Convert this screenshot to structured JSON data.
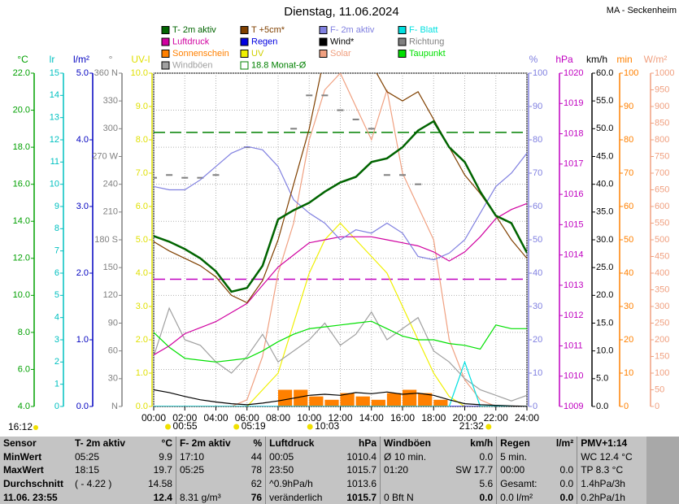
{
  "chart_data": {
    "type": "line",
    "title": "Dienstag, 11.06.2024",
    "station": "MA - Seckenheim",
    "x": [
      0,
      1,
      2,
      3,
      4,
      5,
      6,
      7,
      8,
      9,
      10,
      11,
      12,
      13,
      14,
      15,
      16,
      17,
      18,
      19,
      20,
      21,
      22,
      23,
      24
    ],
    "xlim": [
      0,
      24
    ],
    "xticks": [
      {
        "value": 0,
        "label": "00:00"
      },
      {
        "value": 2,
        "label": "02:00"
      },
      {
        "value": 4,
        "label": "04:00"
      },
      {
        "value": 6,
        "label": "06:00"
      },
      {
        "value": 8,
        "label": "08:00"
      },
      {
        "value": 10,
        "label": "10:00"
      },
      {
        "value": 12,
        "label": "12:00"
      },
      {
        "value": 14,
        "label": "14:00"
      },
      {
        "value": 16,
        "label": "16:00"
      },
      {
        "value": 18,
        "label": "18:00"
      },
      {
        "value": 20,
        "label": "20:00"
      },
      {
        "value": 22,
        "label": "22:00"
      },
      {
        "value": 24,
        "label": "24:00"
      }
    ],
    "grid": true,
    "axes": [
      {
        "label": "°C",
        "color": "#00a000",
        "side": "left",
        "lim": [
          4,
          22
        ],
        "ticks": [
          {
            "value": 4,
            "label": "4.0"
          },
          {
            "value": 6,
            "label": "6.0"
          },
          {
            "value": 8,
            "label": "8.0"
          },
          {
            "value": 10,
            "label": "10.0"
          },
          {
            "value": 12,
            "label": "12.0"
          },
          {
            "value": 14,
            "label": "14.0"
          },
          {
            "value": 16,
            "label": "16.0"
          },
          {
            "value": 18,
            "label": "18.0"
          },
          {
            "value": 20,
            "label": "20.0"
          },
          {
            "value": 22,
            "label": "22.0"
          }
        ]
      },
      {
        "label": "lr",
        "color": "#00c0c0",
        "side": "left",
        "lim": [
          0,
          15
        ],
        "ticks": [
          0,
          1,
          2,
          3,
          4,
          5,
          6,
          7,
          8,
          9,
          10,
          11,
          12,
          13,
          14,
          15
        ]
      },
      {
        "label": "l/m²",
        "color": "#0000c0",
        "side": "left",
        "lim": [
          0,
          5
        ],
        "ticks": [
          {
            "value": 0,
            "label": "0.0"
          },
          {
            "value": 1,
            "label": "1.0"
          },
          {
            "value": 2,
            "label": "2.0"
          },
          {
            "value": 3,
            "label": "3.0"
          },
          {
            "value": 4,
            "label": "4.0"
          },
          {
            "value": 5,
            "label": "5.0"
          }
        ]
      },
      {
        "label": "°",
        "color": "#808080",
        "side": "left",
        "lim": [
          0,
          360
        ],
        "ticks": [
          {
            "value": 0,
            "label": "N"
          },
          30,
          60,
          90,
          120,
          150,
          {
            "value": 180,
            "label": "180 S"
          },
          210,
          240,
          {
            "value": 270,
            "label": "270 W"
          },
          300,
          330,
          {
            "value": 360,
            "label": "360 N"
          }
        ]
      },
      {
        "label": "UV-I",
        "color": "#e0e000",
        "side": "left",
        "lim": [
          0,
          10
        ],
        "ticks": [
          {
            "value": 0,
            "label": "0.0"
          },
          {
            "value": 1,
            "label": "1.0"
          },
          {
            "value": 2,
            "label": "2.0"
          },
          {
            "value": 3,
            "label": "3.0"
          },
          {
            "value": 4,
            "label": "4.0"
          },
          {
            "value": 5,
            "label": "5.0"
          },
          {
            "value": 6,
            "label": "6.0"
          },
          {
            "value": 7,
            "label": "7.0"
          },
          {
            "value": 8,
            "label": "8.0"
          },
          {
            "value": 9,
            "label": "9.0"
          },
          {
            "value": 10,
            "label": "10.0"
          }
        ]
      },
      {
        "label": "%",
        "color": "#8080e0",
        "side": "right",
        "lim": [
          0,
          100
        ],
        "ticks": [
          0,
          10,
          20,
          30,
          40,
          50,
          60,
          70,
          80,
          90,
          100
        ]
      },
      {
        "label": "hPa",
        "color": "#c000c0",
        "side": "right",
        "lim": [
          1009,
          1020
        ],
        "ticks": [
          1009,
          1010,
          1011,
          1012,
          1013,
          1014,
          1015,
          1016,
          1017,
          1018,
          1019,
          1020
        ]
      },
      {
        "label": "km/h",
        "color": "#000000",
        "side": "right",
        "lim": [
          0,
          60
        ],
        "ticks": [
          {
            "value": 0,
            "label": "0.0"
          },
          {
            "value": 5,
            "label": "5.0"
          },
          {
            "value": 10,
            "label": "10.0"
          },
          {
            "value": 15,
            "label": "15.0"
          },
          {
            "value": 20,
            "label": "20.0"
          },
          {
            "value": 25,
            "label": "25.0"
          },
          {
            "value": 30,
            "label": "30.0"
          },
          {
            "value": 35,
            "label": "35.0"
          },
          {
            "value": 40,
            "label": "40.0"
          },
          {
            "value": 45,
            "label": "45.0"
          },
          {
            "value": 50,
            "label": "50.0"
          },
          {
            "value": 55,
            "label": "55.0"
          },
          {
            "value": 60,
            "label": "60.0"
          }
        ]
      },
      {
        "label": "min",
        "color": "#ff8000",
        "side": "right",
        "lim": [
          0,
          100
        ],
        "ticks": [
          0,
          10,
          20,
          30,
          40,
          50,
          60,
          70,
          80,
          90,
          100
        ]
      },
      {
        "label": "W/m²",
        "color": "#f0a080",
        "side": "right",
        "lim": [
          0,
          1000
        ],
        "ticks": [
          0,
          50,
          100,
          150,
          200,
          250,
          300,
          350,
          400,
          450,
          500,
          550,
          600,
          650,
          700,
          750,
          800,
          850,
          900,
          950,
          1000
        ]
      }
    ],
    "series": [
      {
        "name": "T- 2m aktiv",
        "color": "#006400",
        "axis": 0,
        "mark": "line",
        "values": [
          13.2,
          12.9,
          12.5,
          12.0,
          11.3,
          10.2,
          10.4,
          11.6,
          14.1,
          14.6,
          15.0,
          15.6,
          16.1,
          16.4,
          17.2,
          17.4,
          18.0,
          18.9,
          19.4,
          18.0,
          17.2,
          15.6,
          14.3,
          13.9,
          12.3
        ]
      },
      {
        "name": "T +5cm*",
        "color": "#804000",
        "axis": 0,
        "mark": "line",
        "values": [
          12.9,
          12.4,
          12.0,
          11.6,
          11.0,
          10.0,
          9.6,
          10.8,
          13.0,
          16.0,
          19.0,
          23.0,
          24.0,
          24.0,
          22.5,
          21.0,
          20.5,
          21.0,
          19.5,
          18.0,
          16.5,
          15.5,
          14.3,
          13.0,
          12.0
        ]
      },
      {
        "name": "F- 2m aktiv",
        "color": "#8080e0",
        "axis": 5,
        "mark": "line",
        "values": [
          66,
          65,
          65,
          68,
          72,
          76,
          78,
          77,
          72,
          62,
          58,
          55,
          50,
          53,
          52,
          55,
          52,
          45,
          44,
          46,
          50,
          58,
          66,
          70,
          76
        ]
      },
      {
        "name": "F- Blatt",
        "color": "#00e0e0",
        "axis": 1,
        "mark": "line",
        "values": [
          0,
          0,
          0,
          0,
          0,
          0,
          0,
          0,
          0,
          0,
          0,
          0,
          0,
          0,
          0,
          0,
          0,
          0,
          0,
          0,
          2,
          0,
          0,
          0,
          0
        ]
      },
      {
        "name": "Luftdruck",
        "color": "#d000a0",
        "axis": 6,
        "mark": "line",
        "values": [
          1010.7,
          1011.0,
          1011.4,
          1011.6,
          1011.8,
          1012.1,
          1012.4,
          1013.0,
          1013.6,
          1014.0,
          1014.4,
          1014.5,
          1014.6,
          1014.6,
          1014.6,
          1014.5,
          1014.4,
          1014.3,
          1014.1,
          1013.8,
          1014.1,
          1014.6,
          1015.2,
          1015.5,
          1015.7
        ]
      },
      {
        "name": "Regen",
        "color": "#0000e0",
        "axis": 2,
        "mark": "line",
        "values": [
          0,
          0,
          0,
          0,
          0,
          0,
          0,
          0,
          0,
          0,
          0,
          0,
          0,
          0,
          0,
          0,
          0,
          0,
          0,
          0,
          0,
          0,
          0,
          0,
          0
        ]
      },
      {
        "name": "Wind*",
        "color": "#000000",
        "axis": 7,
        "mark": "line",
        "values": [
          3,
          2.5,
          1.8,
          1.2,
          0.8,
          0.5,
          0.3,
          0.6,
          1,
          1.5,
          2,
          2.2,
          2,
          2.5,
          2.3,
          2.6,
          2.2,
          2.4,
          2,
          1.2,
          0.5,
          0.3,
          0.2,
          0.1,
          0
        ]
      },
      {
        "name": "Richtung",
        "color": "#808080",
        "axis": 3,
        "mark": "dots",
        "values": [
          247,
          250,
          247,
          247,
          250,
          null,
          280,
          null,
          null,
          300,
          336,
          336,
          320,
          310,
          300,
          250,
          250,
          240,
          null,
          null,
          null,
          null,
          null,
          null,
          null
        ]
      },
      {
        "name": "Sonnenschein",
        "color": "#ff8000",
        "axis": 8,
        "mark": "bar",
        "values": [
          0,
          0,
          0,
          0,
          0,
          0,
          0,
          0,
          5,
          5,
          3,
          2,
          4,
          3,
          2,
          4,
          5,
          4,
          2,
          0,
          0,
          0,
          0,
          0,
          0
        ]
      },
      {
        "name": "UV",
        "color": "#f0f000",
        "axis": 4,
        "mark": "line",
        "values": [
          0,
          0,
          0,
          0,
          0,
          0,
          0,
          0.5,
          1,
          2.5,
          4,
          5,
          5.5,
          5,
          4.5,
          4,
          3,
          2,
          1,
          0.3,
          0,
          0,
          0,
          0,
          0
        ]
      },
      {
        "name": "Solar",
        "color": "#f0a080",
        "axis": 9,
        "mark": "line",
        "values": [
          0,
          0,
          0,
          0,
          0,
          0,
          20,
          150,
          400,
          550,
          800,
          950,
          1000,
          900,
          800,
          950,
          700,
          600,
          500,
          200,
          80,
          20,
          0,
          0,
          0
        ]
      },
      {
        "name": "Taupunkt",
        "color": "#00e000",
        "axis": 0,
        "mark": "line",
        "values": [
          8.0,
          7.2,
          6.6,
          6.5,
          6.4,
          6.5,
          6.6,
          7.0,
          7.5,
          7.9,
          8.2,
          8.3,
          8.4,
          8.5,
          8.6,
          8.2,
          7.8,
          7.6,
          7.6,
          7.4,
          7.3,
          7.1,
          8.4,
          8.2,
          8.2
        ]
      },
      {
        "name": "Windböen",
        "color": "#a0a0a0",
        "axis": 7,
        "mark": "line",
        "values": [
          9,
          17.7,
          12,
          11,
          8,
          6,
          9,
          13,
          8,
          10,
          12,
          15,
          11,
          13,
          17,
          12,
          14,
          16,
          10,
          8,
          5,
          3,
          2,
          1,
          2
        ]
      }
    ],
    "reference_lines": [
      {
        "name": "18.8 Monat-Ø",
        "value": 18.8,
        "axis": 0,
        "color": "#008000"
      },
      {
        "value": 1013.2,
        "axis": 6,
        "color": "#c000c0"
      }
    ],
    "time_markers": [
      {
        "value": 0.917,
        "label": "00:55"
      },
      {
        "value": 5.317,
        "label": "05:19"
      },
      {
        "value": 10.05,
        "label": "10:03"
      },
      {
        "value": 21.533,
        "label": "21:32"
      }
    ],
    "moon_time": "16:12"
  },
  "table": {
    "header": [
      "Sensor",
      "T- 2m aktiv",
      "°C",
      "F- 2m aktiv",
      "%",
      "Luftdruck",
      "hPa",
      "Windböen",
      "km/h",
      "Regen",
      "l/m²",
      "PMV+1:14"
    ],
    "rows": [
      [
        "MinWert",
        "05:25",
        "9.9",
        "17:10",
        "44",
        "00:05",
        "1010.4",
        "Ø 10 min.",
        "0.0",
        "5 min.",
        null,
        "WC 12.4 °C"
      ],
      [
        "MaxWert",
        "18:15",
        "19.7",
        "05:25",
        "78",
        "23:50",
        "1015.7",
        "01:20",
        "SW 17.7",
        "00:00",
        "0.0",
        "TP 8.3 °C"
      ],
      [
        "Durchschnitt",
        "( - 4.22 )",
        "14.58",
        null,
        "62",
        "^0.9hPa/h",
        "1013.6",
        null,
        "5.6",
        "Gesamt:",
        "0.0",
        "1.4hPa/3h"
      ],
      [
        "11.06. 23:55",
        null,
        "12.4",
        "8.31 g/m³",
        "76",
        "veränderlich",
        "1015.7",
        "0 Bft N",
        "0.0",
        "0.0 l/m²",
        "0.0",
        "0.2hPa/1h"
      ]
    ]
  }
}
